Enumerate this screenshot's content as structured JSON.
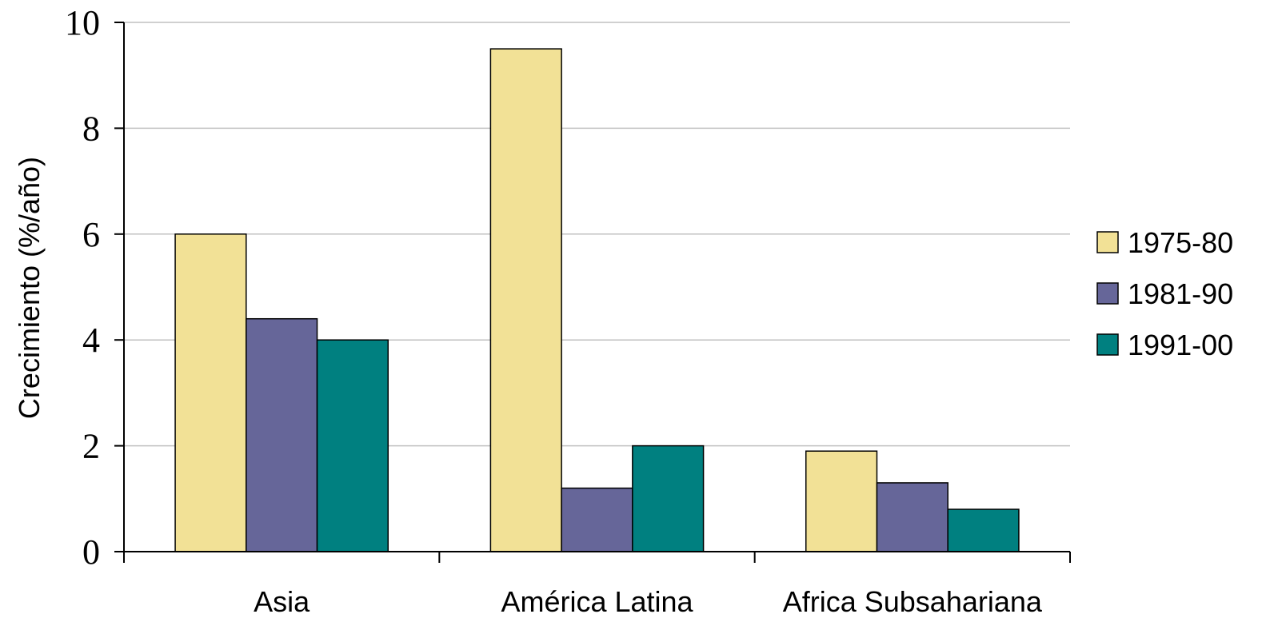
{
  "chart_data": {
    "type": "bar",
    "title": "",
    "xlabel": "",
    "ylabel": "Crecimiento (%/año)",
    "ylim": [
      0,
      10
    ],
    "yticks": [
      0,
      2,
      4,
      6,
      8,
      10
    ],
    "grid": true,
    "legend_position": "right",
    "categories": [
      "Asia",
      "América Latina",
      "Africa Subsahariana"
    ],
    "series": [
      {
        "name": "1975-80",
        "color": "#f2e196",
        "values": [
          6.0,
          9.5,
          1.9
        ]
      },
      {
        "name": "1981-90",
        "color": "#666699",
        "values": [
          4.4,
          1.2,
          1.3
        ]
      },
      {
        "name": "1991-00",
        "color": "#008080",
        "values": [
          4.0,
          2.0,
          0.8
        ]
      }
    ]
  }
}
